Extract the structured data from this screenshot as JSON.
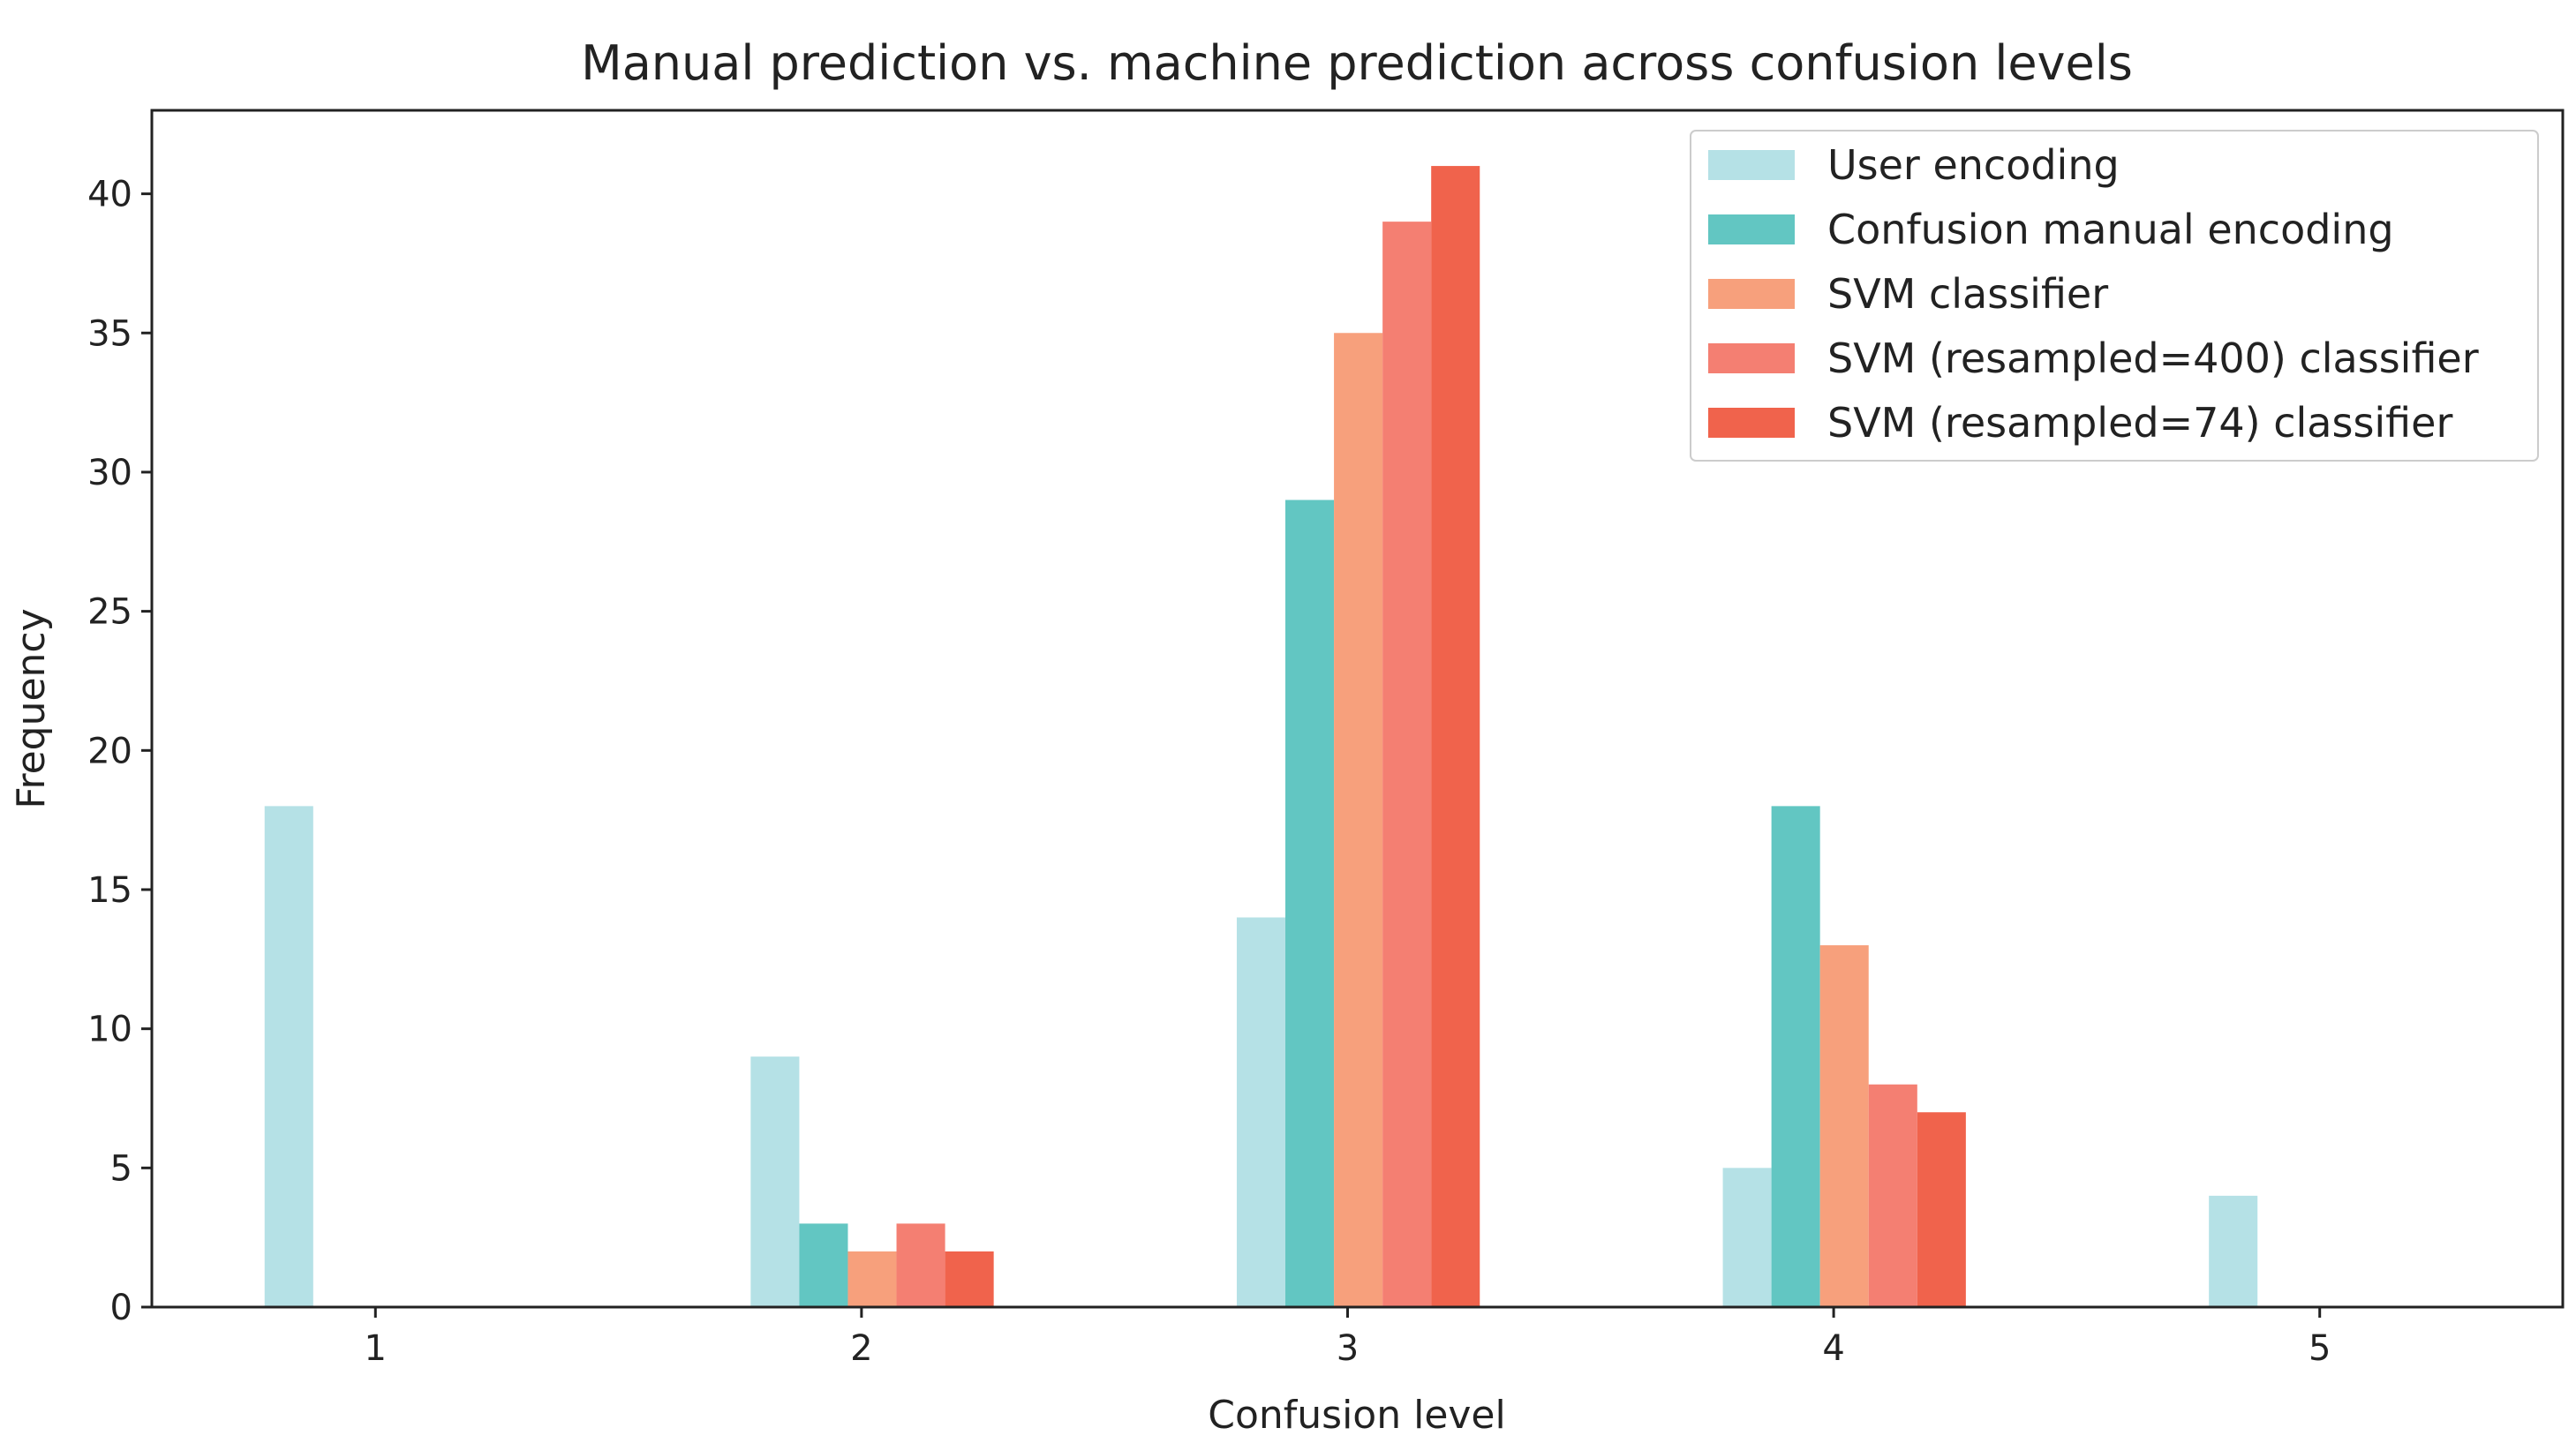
{
  "chart_data": {
    "type": "bar",
    "title": "Manual prediction vs. machine prediction across confusion levels",
    "xlabel": "Confusion level",
    "ylabel": "Frequency",
    "categories": [
      "1",
      "2",
      "3",
      "4",
      "5"
    ],
    "xlim": [
      0.54,
      5.5
    ],
    "ylim": [
      0,
      43
    ],
    "yticks": [
      0,
      5,
      10,
      15,
      20,
      25,
      30,
      35,
      40
    ],
    "grid": false,
    "legend_position": "top-right",
    "series": [
      {
        "name": "User encoding",
        "color": "#b5e1e6",
        "values": [
          18,
          9,
          14,
          5,
          4
        ]
      },
      {
        "name": "Confusion manual encoding",
        "color": "#62c6c2",
        "values": [
          0,
          3,
          29,
          18,
          0
        ]
      },
      {
        "name": "SVM classifier",
        "color": "#f7a07c",
        "values": [
          0,
          2,
          35,
          13,
          0
        ]
      },
      {
        "name": "SVM (resampled=400) classifier",
        "color": "#f47f72",
        "values": [
          0,
          3,
          39,
          8,
          0
        ]
      },
      {
        "name": "SVM (resampled=74) classifier",
        "color": "#f0634c",
        "values": [
          0,
          2,
          41,
          7,
          0
        ]
      }
    ]
  }
}
